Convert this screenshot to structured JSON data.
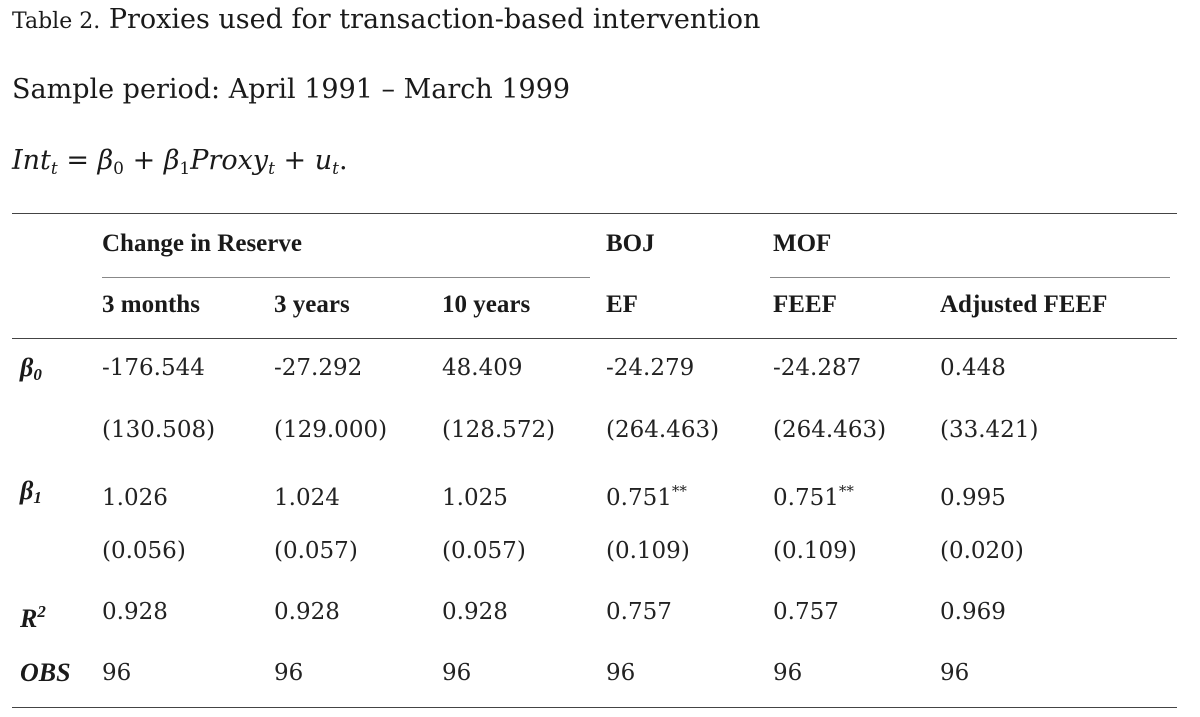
{
  "caption": {
    "label": "Table 2.",
    "text": "Proxies used for transaction-based intervention"
  },
  "sample_period": "Sample period: April 1991 – March 1999",
  "equation": {
    "lhs": "Int",
    "lhs_sub": "t",
    "eq": "=",
    "b0": "β",
    "b0_sub": "0",
    "plus1": "+",
    "b1": "β",
    "b1_sub": "1",
    "proxy": "Proxy",
    "proxy_sub": "t",
    "plus2": "+",
    "u": "u",
    "u_sub": "t",
    "end": "."
  },
  "table": {
    "groups": [
      "Change in Reserve",
      "BOJ",
      "MOF"
    ],
    "columns": [
      "3 months",
      "3 years",
      "10 years",
      "EF",
      "FEEF",
      "Adjusted FEEF"
    ],
    "row_labels": {
      "beta0": "β",
      "beta0_sub": "0",
      "beta1": "β",
      "beta1_sub": "1",
      "r2": "R",
      "r2_sup": "2",
      "obs": "OBS"
    },
    "beta0": [
      "-176.544",
      "-27.292",
      "48.409",
      "-24.279",
      "-24.287",
      "0.448"
    ],
    "beta0_se": [
      "(130.508)",
      "(129.000)",
      "(128.572)",
      "(264.463)",
      "(264.463)",
      "(33.421)"
    ],
    "beta1": [
      "1.026",
      "1.024",
      "1.025",
      "0.751",
      "0.751",
      "0.995"
    ],
    "beta1_stars": [
      "",
      "",
      "",
      "**",
      "**",
      ""
    ],
    "beta1_se": [
      "(0.056)",
      "(0.057)",
      "(0.057)",
      "(0.109)",
      "(0.109)",
      "(0.020)"
    ],
    "r2": [
      "0.928",
      "0.928",
      "0.928",
      "0.757",
      "0.757",
      "0.969"
    ],
    "obs": [
      "96",
      "96",
      "96",
      "96",
      "96",
      "96"
    ]
  }
}
